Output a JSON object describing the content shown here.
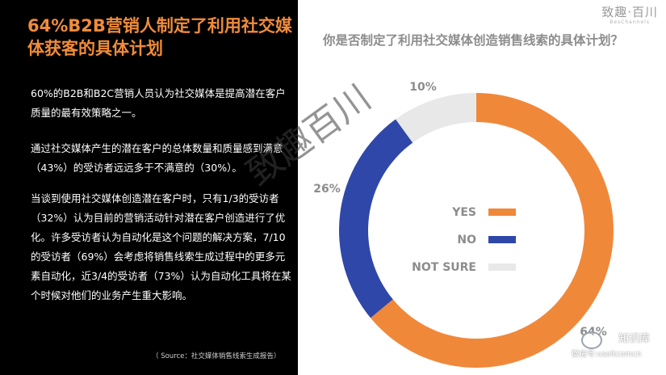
{
  "left": {
    "headline": "64%B2B营销人制定了利用社交媒体获客的具体计划",
    "paragraphs": [
      "60%的B2B和B2C营销人员认为社交媒体是提高潜在客户质量的最有效策略之一。",
      "通过社交媒体产生的潜在客户的总体数量和质量感到满意（43%）的受访者远远多于不满意的（30%）。",
      "当谈到使用社交媒体创造潜在客户时，只有1/3的受访者（32%）认为目前的营销活动针对潜在客户创造进行了优化。许多受访者认为自动化是这个问题的解决方案，7/10的受访者（69%）会考虑将销售线索生成过程中的更多元素自动化，近3/4的受访者（73%）认为自动化工具将在某个时候对他们的业务产生重大影响。"
    ],
    "source": "（ Source：社交媒体销售线索生成报告）"
  },
  "logo": {
    "main": "致趣·百川",
    "sub": "BesChannels"
  },
  "watermark": {
    "text": "致趣百川"
  },
  "wechat": {
    "name": "知识库",
    "id": "微信号:useitcomcn"
  },
  "colors": {
    "yes": "#f0883a",
    "no": "#2f47a8",
    "not_sure": "#e8e8e8",
    "accent": "#f08c3a"
  },
  "chart_data": {
    "type": "pie",
    "style": "donut",
    "title": "你是否制定了利用社交媒体创造销售线索的具体计划？",
    "categories": [
      "YES",
      "NO",
      "NOT SURE"
    ],
    "values": [
      64,
      26,
      10
    ],
    "data_labels": [
      "64%",
      "26%",
      "10%"
    ],
    "legend": {
      "placement": "center",
      "entries": [
        "YES",
        "NO",
        "NOT SURE"
      ]
    }
  }
}
